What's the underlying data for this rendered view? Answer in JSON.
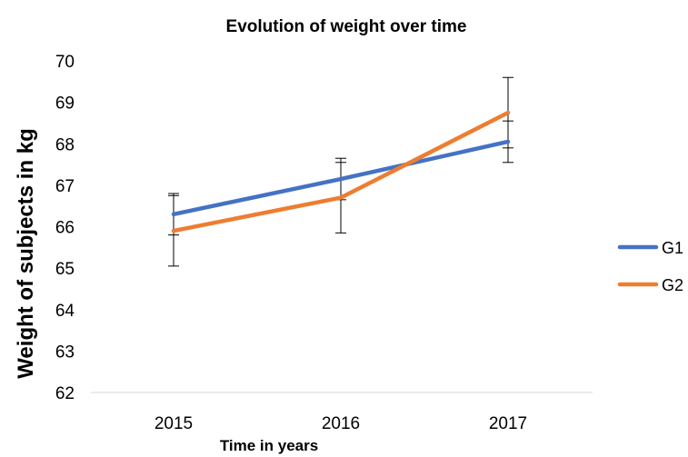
{
  "chart_data": {
    "type": "line",
    "title": "Evolution of weight over time",
    "xlabel": "Time in years",
    "ylabel": "Weight of subjects in kg",
    "categories": [
      "2015",
      "2016",
      "2017"
    ],
    "ylim": [
      62,
      70
    ],
    "yticks": [
      62,
      63,
      64,
      65,
      66,
      67,
      68,
      69,
      70
    ],
    "ytick_labels": [
      "62",
      "63",
      "64",
      "65",
      "66",
      "67",
      "68",
      "69",
      "70"
    ],
    "grid": false,
    "legend_position": "right",
    "series": [
      {
        "name": "G1",
        "color": "#4472C4",
        "values": [
          66.3,
          67.15,
          68.05
        ],
        "error_low": [
          65.8,
          66.65,
          67.55
        ],
        "error_high": [
          66.8,
          67.65,
          68.55
        ]
      },
      {
        "name": "G2",
        "color": "#ED7D31",
        "values": [
          65.9,
          66.7,
          68.75
        ],
        "error_low": [
          65.05,
          65.85,
          67.9
        ],
        "error_high": [
          66.75,
          67.55,
          69.6
        ]
      }
    ]
  }
}
